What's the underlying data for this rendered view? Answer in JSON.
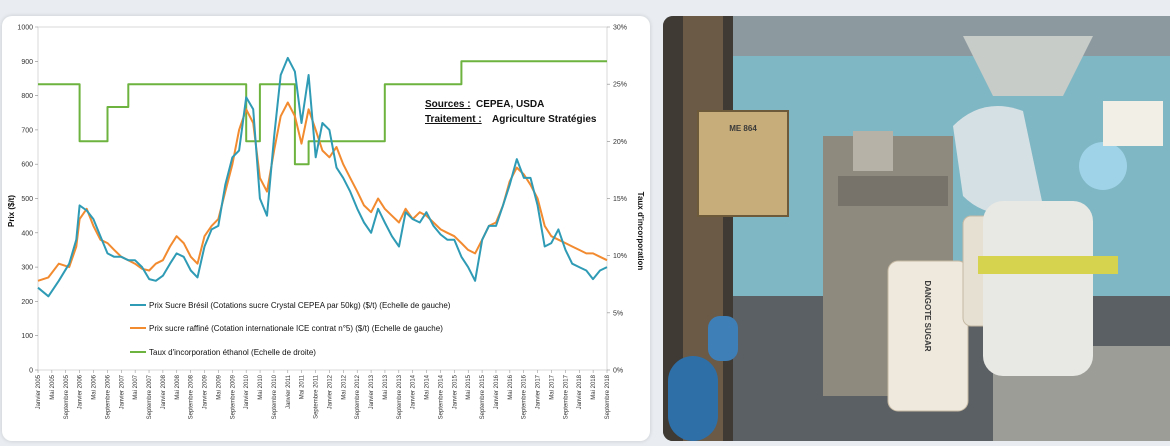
{
  "chart_data": {
    "type": "line",
    "source_label": "Sources :",
    "source_value": "CEPEA, USDA",
    "treatment_label": "Traitement :",
    "treatment_value": "Agriculture Stratégies",
    "ylabel": "Prix ($/t)",
    "y2label": "Taux d'incorporation",
    "ylim": [
      0,
      1000
    ],
    "y2lim": [
      0,
      30
    ],
    "yticks": [
      "0",
      "100",
      "200",
      "300",
      "400",
      "500",
      "600",
      "700",
      "800",
      "900",
      "1000"
    ],
    "y2ticks": [
      "0%",
      "5%",
      "10%",
      "15%",
      "20%",
      "25%",
      "30%"
    ],
    "x_start": 2005.0,
    "x_end": 2018.667,
    "xticks": [
      "Janvier 2005",
      "Mai 2005",
      "Septembre 2005",
      "Janvier 2006",
      "Mai 2006",
      "Septembre 2006",
      "Janvier 2007",
      "Mai 2007",
      "Septembre 2007",
      "Janvier 2008",
      "Mai 2008",
      "Septembre 2008",
      "Janvier 2009",
      "Mai 2009",
      "Septembre 2009",
      "Janvier 2010",
      "Mai 2010",
      "Septembre 2010",
      "Janvier 2011",
      "Mai 2011",
      "Septembre 2011",
      "Janvier 2012",
      "Mai 2012",
      "Septembre 2012",
      "Janvier 2013",
      "Mai 2013",
      "Septembre 2013",
      "Janvier 2014",
      "Mai 2014",
      "Septembre 2014",
      "Janvier 2015",
      "Mai 2015",
      "Septembre 2015",
      "Janvier 2016",
      "Mai 2016",
      "Septembre 2016",
      "Janvier 2017",
      "Mai 2017",
      "Septembre 2017",
      "Janvier 2018",
      "Mai 2018",
      "Septembre 2018"
    ],
    "series": [
      {
        "name": "Prix Sucre Brésil (Cotations sucre Crystal CEPEA par 50kg) ($/t) (Echelle de gauche)",
        "axis": "left",
        "color": "#2f9bb5",
        "points": [
          [
            2005.0,
            240
          ],
          [
            2005.25,
            215
          ],
          [
            2005.5,
            260
          ],
          [
            2005.75,
            310
          ],
          [
            2005.92,
            380
          ],
          [
            2006.0,
            480
          ],
          [
            2006.17,
            465
          ],
          [
            2006.33,
            440
          ],
          [
            2006.5,
            390
          ],
          [
            2006.67,
            340
          ],
          [
            2006.83,
            330
          ],
          [
            2007.0,
            330
          ],
          [
            2007.17,
            320
          ],
          [
            2007.33,
            320
          ],
          [
            2007.5,
            300
          ],
          [
            2007.67,
            265
          ],
          [
            2007.83,
            260
          ],
          [
            2008.0,
            275
          ],
          [
            2008.17,
            310
          ],
          [
            2008.33,
            340
          ],
          [
            2008.5,
            330
          ],
          [
            2008.67,
            290
          ],
          [
            2008.83,
            270
          ],
          [
            2009.0,
            360
          ],
          [
            2009.17,
            410
          ],
          [
            2009.33,
            420
          ],
          [
            2009.5,
            540
          ],
          [
            2009.67,
            620
          ],
          [
            2009.83,
            640
          ],
          [
            2010.0,
            795
          ],
          [
            2010.17,
            760
          ],
          [
            2010.33,
            500
          ],
          [
            2010.5,
            450
          ],
          [
            2010.67,
            680
          ],
          [
            2010.83,
            860
          ],
          [
            2011.0,
            910
          ],
          [
            2011.17,
            870
          ],
          [
            2011.33,
            720
          ],
          [
            2011.5,
            860
          ],
          [
            2011.67,
            620
          ],
          [
            2011.83,
            720
          ],
          [
            2012.0,
            700
          ],
          [
            2012.17,
            590
          ],
          [
            2012.33,
            560
          ],
          [
            2012.5,
            520
          ],
          [
            2012.67,
            470
          ],
          [
            2012.83,
            430
          ],
          [
            2013.0,
            400
          ],
          [
            2013.17,
            470
          ],
          [
            2013.33,
            430
          ],
          [
            2013.5,
            390
          ],
          [
            2013.67,
            360
          ],
          [
            2013.83,
            460
          ],
          [
            2014.0,
            440
          ],
          [
            2014.17,
            430
          ],
          [
            2014.33,
            460
          ],
          [
            2014.5,
            420
          ],
          [
            2014.67,
            395
          ],
          [
            2014.83,
            380
          ],
          [
            2015.0,
            380
          ],
          [
            2015.17,
            330
          ],
          [
            2015.33,
            300
          ],
          [
            2015.5,
            260
          ],
          [
            2015.67,
            380
          ],
          [
            2015.83,
            420
          ],
          [
            2016.0,
            420
          ],
          [
            2016.17,
            480
          ],
          [
            2016.33,
            540
          ],
          [
            2016.5,
            615
          ],
          [
            2016.67,
            560
          ],
          [
            2016.83,
            560
          ],
          [
            2017.0,
            480
          ],
          [
            2017.17,
            360
          ],
          [
            2017.33,
            370
          ],
          [
            2017.5,
            410
          ],
          [
            2017.67,
            350
          ],
          [
            2017.83,
            310
          ],
          [
            2018.0,
            300
          ],
          [
            2018.17,
            290
          ],
          [
            2018.33,
            265
          ],
          [
            2018.5,
            290
          ],
          [
            2018.667,
            300
          ]
        ]
      },
      {
        "name": "Prix sucre raffiné (Cotation internationale ICE contrat n°5) ($/t) (Echelle de gauche)",
        "axis": "left",
        "color": "#f28a30",
        "points": [
          [
            2005.0,
            260
          ],
          [
            2005.25,
            270
          ],
          [
            2005.5,
            310
          ],
          [
            2005.75,
            300
          ],
          [
            2005.92,
            360
          ],
          [
            2006.0,
            440
          ],
          [
            2006.17,
            470
          ],
          [
            2006.33,
            420
          ],
          [
            2006.5,
            380
          ],
          [
            2006.67,
            370
          ],
          [
            2006.83,
            350
          ],
          [
            2007.0,
            330
          ],
          [
            2007.17,
            320
          ],
          [
            2007.33,
            310
          ],
          [
            2007.5,
            295
          ],
          [
            2007.67,
            290
          ],
          [
            2007.83,
            310
          ],
          [
            2008.0,
            320
          ],
          [
            2008.17,
            360
          ],
          [
            2008.33,
            390
          ],
          [
            2008.5,
            370
          ],
          [
            2008.67,
            330
          ],
          [
            2008.83,
            310
          ],
          [
            2009.0,
            390
          ],
          [
            2009.17,
            420
          ],
          [
            2009.33,
            440
          ],
          [
            2009.5,
            520
          ],
          [
            2009.67,
            600
          ],
          [
            2009.83,
            700
          ],
          [
            2010.0,
            760
          ],
          [
            2010.17,
            720
          ],
          [
            2010.33,
            560
          ],
          [
            2010.5,
            520
          ],
          [
            2010.67,
            640
          ],
          [
            2010.83,
            740
          ],
          [
            2011.0,
            780
          ],
          [
            2011.17,
            740
          ],
          [
            2011.33,
            660
          ],
          [
            2011.5,
            760
          ],
          [
            2011.67,
            700
          ],
          [
            2011.83,
            640
          ],
          [
            2012.0,
            620
          ],
          [
            2012.17,
            650
          ],
          [
            2012.33,
            600
          ],
          [
            2012.5,
            560
          ],
          [
            2012.67,
            520
          ],
          [
            2012.83,
            480
          ],
          [
            2013.0,
            460
          ],
          [
            2013.17,
            500
          ],
          [
            2013.33,
            470
          ],
          [
            2013.5,
            450
          ],
          [
            2013.67,
            430
          ],
          [
            2013.83,
            470
          ],
          [
            2014.0,
            440
          ],
          [
            2014.17,
            460
          ],
          [
            2014.33,
            450
          ],
          [
            2014.5,
            430
          ],
          [
            2014.67,
            410
          ],
          [
            2014.83,
            400
          ],
          [
            2015.0,
            390
          ],
          [
            2015.17,
            370
          ],
          [
            2015.33,
            350
          ],
          [
            2015.5,
            340
          ],
          [
            2015.67,
            380
          ],
          [
            2015.83,
            420
          ],
          [
            2016.0,
            430
          ],
          [
            2016.17,
            480
          ],
          [
            2016.33,
            550
          ],
          [
            2016.5,
            590
          ],
          [
            2016.67,
            570
          ],
          [
            2016.83,
            540
          ],
          [
            2017.0,
            500
          ],
          [
            2017.17,
            420
          ],
          [
            2017.33,
            390
          ],
          [
            2017.5,
            380
          ],
          [
            2017.67,
            370
          ],
          [
            2017.83,
            360
          ],
          [
            2018.0,
            350
          ],
          [
            2018.17,
            340
          ],
          [
            2018.33,
            340
          ],
          [
            2018.5,
            330
          ],
          [
            2018.667,
            320
          ]
        ]
      },
      {
        "name": "Taux d'incorporation éthanol (Echelle de droite)",
        "axis": "right",
        "color": "#6db33f",
        "step": true,
        "points": [
          [
            2005.0,
            25
          ],
          [
            2006.0,
            25
          ],
          [
            2006.0,
            20
          ],
          [
            2006.67,
            20
          ],
          [
            2006.67,
            23
          ],
          [
            2007.17,
            23
          ],
          [
            2007.17,
            25
          ],
          [
            2010.0,
            25
          ],
          [
            2010.0,
            20
          ],
          [
            2010.33,
            20
          ],
          [
            2010.33,
            25
          ],
          [
            2011.17,
            25
          ],
          [
            2011.17,
            18
          ],
          [
            2011.5,
            18
          ],
          [
            2011.5,
            20
          ],
          [
            2013.33,
            20
          ],
          [
            2013.33,
            25
          ],
          [
            2015.17,
            25
          ],
          [
            2015.17,
            27
          ],
          [
            2018.667,
            27
          ]
        ]
      }
    ]
  },
  "photo": {
    "panel_label": "ME 864",
    "bag_brand": "DANGOTE SUGAR",
    "colors": {
      "wall": "#7fb7c4",
      "machine": "#8f8a7e",
      "operator_suit": "#e8e8e4",
      "hairnet": "#9fd3e8",
      "helmet": "#2db34a"
    }
  }
}
